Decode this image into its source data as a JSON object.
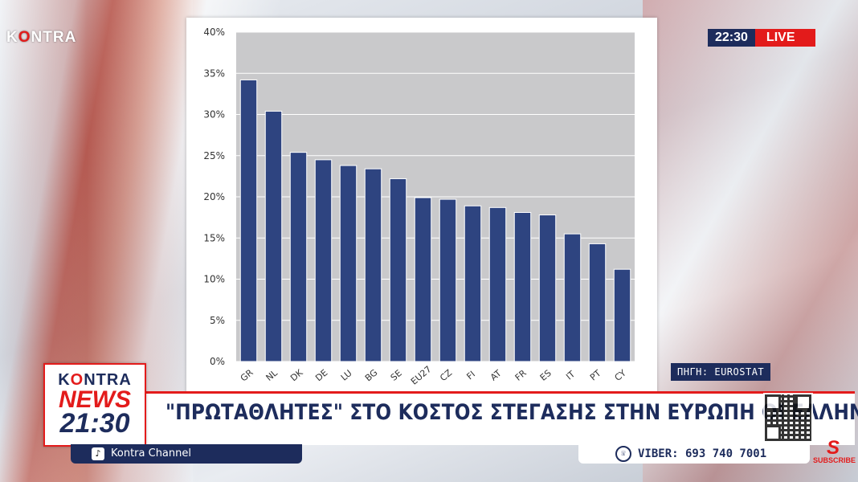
{
  "brand": {
    "top_logo_k": "K",
    "top_logo_o": "O",
    "top_logo_rest": "NTRA"
  },
  "header": {
    "time": "22:30",
    "live_label": "LIVE"
  },
  "source_label": "ΠΗΓΗ: EUROSTAT",
  "news_logo": {
    "line1_k": "K",
    "line1_o": "O",
    "line1_rest": "NTRA",
    "line2": "NEWS",
    "line3": "21:30"
  },
  "headline": "\"ΠΡΩΤΑΘΛΗΤΕΣ\" ΣΤΟ ΚΟΣΤΟΣ ΣΤΕΓΑΣΗΣ ΣΤΗΝ ΕΥΡΩΠΗ ΟΙ ΕΛΛΗΝΕΣ",
  "channel": {
    "icon": "tiktok-icon",
    "glyph": "♪",
    "label": "Kontra Channel"
  },
  "viber": {
    "icon": "phone-icon",
    "glyph": "☏",
    "label": "VIBER: 693 740 7001"
  },
  "subscribe": {
    "glyph": "S",
    "label": "SUBSCRIBE"
  },
  "colors": {
    "accent": "#e31b1b",
    "navy": "#1d2c5c",
    "bar": "#2e4480",
    "plot_bg": "#c9c9cb"
  },
  "chart_data": {
    "type": "bar",
    "categories": [
      "GR",
      "NL",
      "DK",
      "DE",
      "LU",
      "BG",
      "SE",
      "EU27",
      "CZ",
      "FI",
      "AT",
      "FR",
      "ES",
      "IT",
      "PT",
      "CY"
    ],
    "values": [
      34.2,
      30.4,
      25.4,
      24.5,
      23.8,
      23.4,
      22.2,
      19.9,
      19.7,
      18.9,
      18.7,
      18.1,
      17.8,
      15.5,
      14.3,
      11.2
    ],
    "ylim": [
      0,
      40
    ],
    "yticks": [
      0,
      5,
      10,
      15,
      20,
      25,
      30,
      35,
      40
    ],
    "ytick_labels": [
      "0%",
      "5%",
      "10%",
      "15%",
      "20%",
      "25%",
      "30%",
      "35%",
      "40%"
    ],
    "grid": true,
    "title": "",
    "xlabel": "",
    "ylabel": ""
  }
}
